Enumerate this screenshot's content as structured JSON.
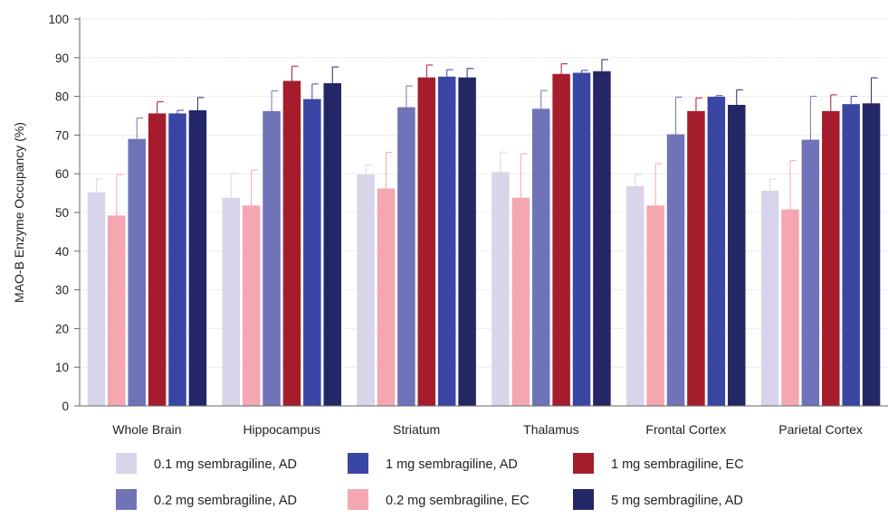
{
  "chart_data": {
    "type": "bar",
    "title": "",
    "xlabel": "",
    "ylabel": "MAO-B Enzyme Occupancy (%)",
    "ylim": [
      0,
      100
    ],
    "yticks": [
      0,
      10,
      20,
      30,
      40,
      50,
      60,
      70,
      80,
      90,
      100
    ],
    "grid": true,
    "legend_position": "bottom",
    "categories": [
      "Whole Brain",
      "Hippocampus",
      "Striatum",
      "Thalamus",
      "Frontal Cortex",
      "Parietal Cortex"
    ],
    "series": [
      {
        "name": "0.1 mg sembragiline, AD",
        "color": "#d8d4ea",
        "values": [
          55.2,
          53.8,
          59.8,
          60.4,
          56.8,
          55.6
        ],
        "error": [
          3.5,
          6.3,
          2.5,
          5.2,
          3.0,
          3.0
        ]
      },
      {
        "name": "0.2 mg sembragiline, EC",
        "color": "#f4a7b0",
        "values": [
          49.2,
          51.8,
          56.2,
          53.8,
          51.8,
          50.8
        ],
        "error": [
          10.6,
          9.2,
          9.3,
          11.4,
          10.8,
          12.6
        ]
      },
      {
        "name": "0.2 mg sembragiline, AD",
        "color": "#6f73b8",
        "values": [
          69.0,
          76.2,
          77.2,
          76.8,
          70.2,
          68.8
        ],
        "error": [
          5.4,
          5.2,
          5.5,
          4.7,
          9.6,
          11.2
        ]
      },
      {
        "name": "1 mg sembragiline, EC",
        "color": "#a51d2d",
        "values": [
          75.6,
          84.0,
          84.9,
          85.8,
          76.2,
          76.2
        ],
        "error": [
          3.0,
          3.8,
          3.2,
          2.6,
          3.4,
          4.2
        ]
      },
      {
        "name": "1 mg sembragiline, AD",
        "color": "#3a46a4",
        "values": [
          75.6,
          79.3,
          85.1,
          86.1,
          79.9,
          78.0
        ],
        "error": [
          0.8,
          3.9,
          1.8,
          0.6,
          0.3,
          2.0
        ]
      },
      {
        "name": "5 mg sembragiline, AD",
        "color": "#242766",
        "values": [
          76.4,
          83.4,
          84.9,
          86.5,
          77.8,
          78.2
        ],
        "error": [
          3.3,
          4.2,
          2.3,
          3.0,
          3.9,
          6.6
        ]
      }
    ],
    "legend_order": [
      0,
      2,
      4,
      1,
      3,
      5
    ]
  }
}
